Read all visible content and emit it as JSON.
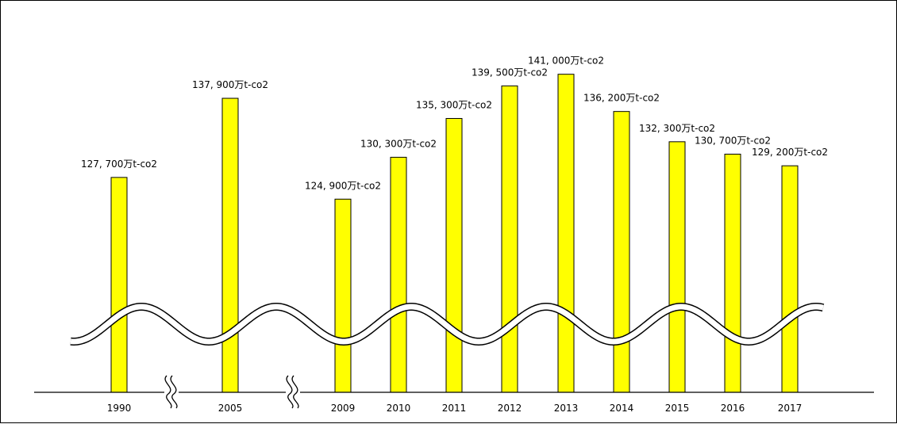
{
  "chart_data": {
    "type": "bar",
    "categories": [
      "1990",
      "2005",
      "2009",
      "2010",
      "2011",
      "2012",
      "2013",
      "2014",
      "2015",
      "2016",
      "2017"
    ],
    "values": [
      127700,
      137900,
      124900,
      130300,
      135300,
      139500,
      141000,
      136200,
      132300,
      130700,
      129200
    ],
    "data_labels": [
      "127, 700万t-co2",
      "137, 900万t-co2",
      "124, 900万t-co2",
      "130, 300万t-co2",
      "135, 300万t-co2",
      "139, 500万t-co2",
      "141, 000万t-co2",
      "136, 200万t-co2",
      "132, 300万t-co2",
      "130, 700万t-co2",
      "129, 200万t-co2"
    ],
    "unit": "万t-co2",
    "axis_breaks_after": [
      "1990",
      "2005"
    ],
    "y_axis_broken": true,
    "ylim": [
      100000,
      142500
    ],
    "grid": false,
    "bar_color": "#ffff00",
    "bar_outline_color": "#000000",
    "break_band_color": "#000000"
  }
}
